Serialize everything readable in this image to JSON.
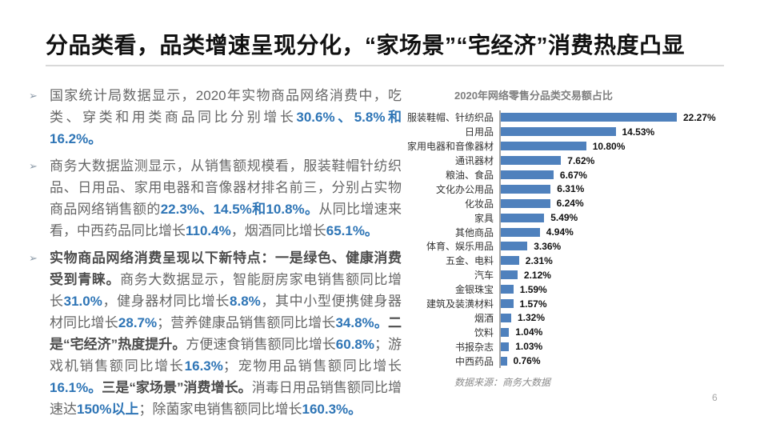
{
  "title": "分品类看，品类增速呈现分化，“家场景”“宅经济”消费热度凸显",
  "bullets": [
    {
      "marker": "➢",
      "segments": [
        {
          "t": "国家统计局数据显示，2020年实物商品网络消费中，吃类、穿类和用类商品同比分别增长",
          "s": "n"
        },
        {
          "t": "30.6%、5.8%和16.2%。",
          "s": "b"
        }
      ]
    },
    {
      "marker": "➢",
      "segments": [
        {
          "t": "商务大数据监测显示，从销售额规模看，服装鞋帽针纺织品、日用品、家用电器和音像器材排名前三，分别占实物商品网络销售额的",
          "s": "n"
        },
        {
          "t": "22.3%、14.5%和10.8%。",
          "s": "b"
        },
        {
          "t": "从同比增速来看，中西药品同比增长",
          "s": "n"
        },
        {
          "t": "110.4%",
          "s": "b"
        },
        {
          "t": "，烟酒同比增长",
          "s": "n"
        },
        {
          "t": "65.1%。",
          "s": "b"
        }
      ]
    },
    {
      "marker": "➢",
      "segments": [
        {
          "t": "实物商品网络消费呈现以下新特点：一是绿色、健康消费受到青睐。",
          "s": "d"
        },
        {
          "t": "商务大数据显示，智能厨房家电销售额同比增长",
          "s": "n"
        },
        {
          "t": "31.0%",
          "s": "b"
        },
        {
          "t": "，健身器材同比增长",
          "s": "n"
        },
        {
          "t": "8.8%",
          "s": "b"
        },
        {
          "t": "，其中小型便携健身器材同比增长",
          "s": "n"
        },
        {
          "t": "28.7%",
          "s": "b"
        },
        {
          "t": "；营养健康品销售额同比增长",
          "s": "n"
        },
        {
          "t": "34.8%。",
          "s": "b"
        },
        {
          "t": "二是“宅经济”热度提升。",
          "s": "d"
        },
        {
          "t": "方便速食销售额同比增长",
          "s": "n"
        },
        {
          "t": "60.8%",
          "s": "b"
        },
        {
          "t": "；游戏机销售额同比增长",
          "s": "n"
        },
        {
          "t": "16.3%",
          "s": "b"
        },
        {
          "t": "；宠物用品销售额同比增长",
          "s": "n"
        },
        {
          "t": "16.1%。",
          "s": "b"
        },
        {
          "t": "三是“家场景”消费增长。",
          "s": "d"
        },
        {
          "t": "消毒日用品销售额同比增速达",
          "s": "n"
        },
        {
          "t": "150%以上",
          "s": "b"
        },
        {
          "t": "；除菌家电销售额同比增长",
          "s": "n"
        },
        {
          "t": "160.3%。",
          "s": "b"
        }
      ]
    }
  ],
  "chart_data": {
    "type": "bar",
    "orientation": "horizontal",
    "title": "2020年网络零售分品类交易额占比",
    "categories": [
      "服装鞋帽、针纺织品",
      "日用品",
      "家用电器和音像器材",
      "通讯器材",
      "粮油、食品",
      "文化办公用品",
      "化妆品",
      "家具",
      "其他商品",
      "体育、娱乐用品",
      "五金、电料",
      "汽车",
      "金银珠宝",
      "建筑及装潢材料",
      "烟酒",
      "饮料",
      "书报杂志",
      "中西药品"
    ],
    "values": [
      22.27,
      14.53,
      10.8,
      7.62,
      6.67,
      6.31,
      6.24,
      5.49,
      4.94,
      3.36,
      2.31,
      2.12,
      1.59,
      1.57,
      1.32,
      1.04,
      1.03,
      0.76
    ],
    "value_labels": [
      "22.27%",
      "14.53%",
      "10.80%",
      "7.62%",
      "6.67%",
      "6.31%",
      "6.24%",
      "5.49%",
      "4.94%",
      "3.36%",
      "2.31%",
      "2.12%",
      "1.59%",
      "1.57%",
      "1.32%",
      "1.04%",
      "1.03%",
      "0.76%"
    ],
    "xlim": [
      0,
      22.27
    ],
    "grid": false,
    "legend": false,
    "bar_color": "#4F81BD",
    "source": "数据来源：商务大数据"
  },
  "page_number": "6",
  "colors": {
    "title": "#111111",
    "body": "#666666",
    "accent_blue": "#2E75B6",
    "bar": "#4F81BD",
    "divider": "#d9d9d9"
  }
}
